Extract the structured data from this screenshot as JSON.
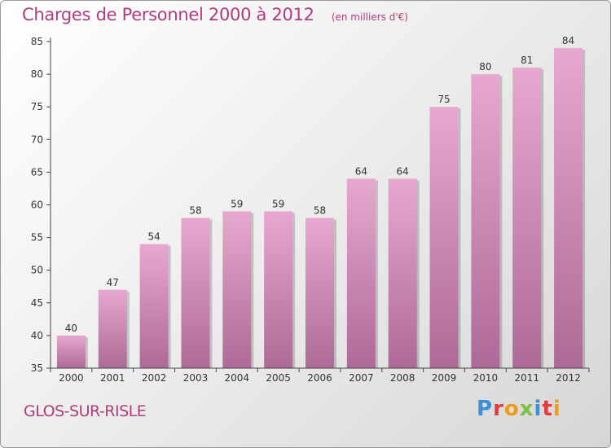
{
  "header": {
    "title": "Charges de Personnel 2000 à 2012",
    "subtitle": "(en milliers d'€)"
  },
  "footer": {
    "commune": "GLOS-SUR-RISLE",
    "logo": "Proxiti"
  },
  "colors": {
    "accent": "#b03c7c",
    "bar_top": "#e7a8cf",
    "bar_bottom": "#ad6a96"
  },
  "chart_data": {
    "type": "bar",
    "categories": [
      "2000",
      "2001",
      "2002",
      "2003",
      "2004",
      "2005",
      "2006",
      "2007",
      "2008",
      "2009",
      "2010",
      "2011",
      "2012"
    ],
    "values": [
      40,
      47,
      54,
      58,
      59,
      59,
      58,
      64,
      64,
      75,
      80,
      81,
      84
    ],
    "title": "Charges de Personnel 2000 à 2012",
    "subtitle": "(en milliers d'€)",
    "xlabel": "",
    "ylabel": "",
    "ylim": [
      35,
      85
    ],
    "yticks": [
      35,
      40,
      45,
      50,
      55,
      60,
      65,
      70,
      75,
      80,
      85
    ],
    "grid": false,
    "legend": "none"
  }
}
